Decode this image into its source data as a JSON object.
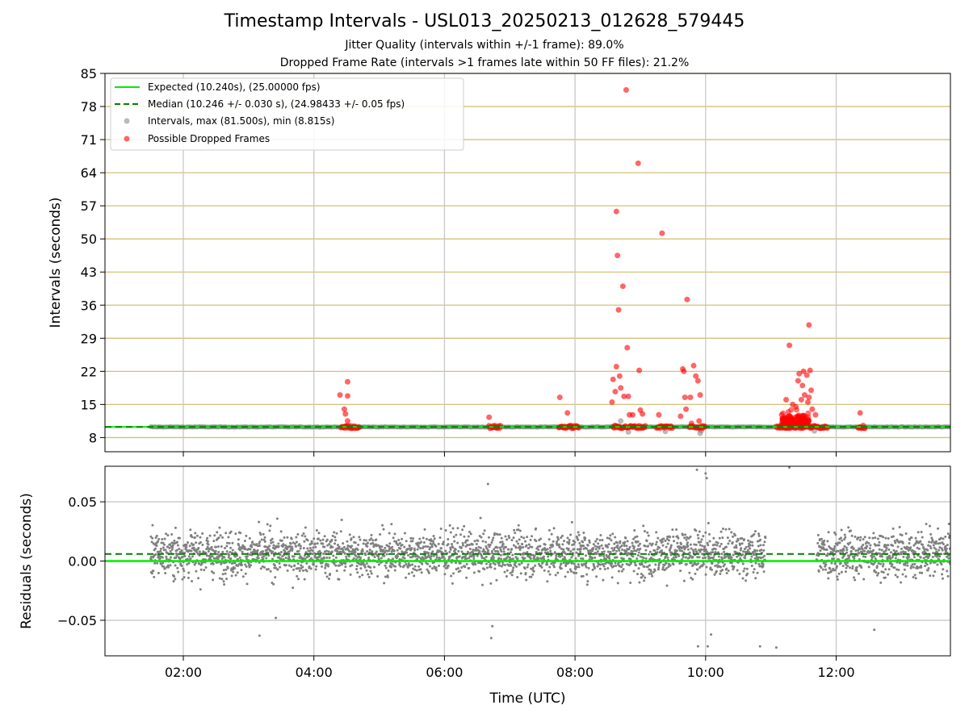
{
  "figure": {
    "title": "Timestamp Intervals - USL013_20250213_012628_579445",
    "subtitle_1": "Jitter Quality (intervals within +/-1 frame): 89.0%",
    "subtitle_2": "Dropped Frame Rate (intervals >1 frames late within 50 FF files): 21.2%"
  },
  "colors": {
    "expected": "#00ee00",
    "median": "#008000",
    "intervals": "#808080",
    "dropped": "#ff0000",
    "hgrid": "#d4c07a",
    "vgrid": "#c8c8c8"
  },
  "chart_data": [
    {
      "type": "scatter",
      "panel": "top",
      "xlabel": "",
      "ylabel": "Intervals (seconds)",
      "xlim": [
        "00:48",
        "13:45"
      ],
      "ylim": [
        5,
        85
      ],
      "y_ticks": [
        8,
        15,
        22,
        29,
        36,
        43,
        50,
        57,
        64,
        71,
        78,
        85
      ],
      "x_ticks": [
        "02:00",
        "04:00",
        "06:00",
        "08:00",
        "10:00",
        "12:00"
      ],
      "grid": true,
      "legend_position": "top-left",
      "legend": [
        "Expected (10.240s), (25.00000 fps)",
        "Median (10.246 +/- 0.030 s), (24.98433 +/- 0.05 fps)",
        "Intervals, max (81.500s), min (8.815s)",
        "Possible Dropped Frames"
      ],
      "series": [
        {
          "name": "Expected (10.240s), (25.00000 fps)",
          "kind": "hline",
          "y": 10.24
        },
        {
          "name": "Median (10.246 +/- 0.030 s), (24.98433 +/- 0.05 fps)",
          "kind": "hline",
          "y": 10.246
        },
        {
          "name": "Intervals, max (81.500s), min (8.815s)",
          "kind": "band",
          "x_range": [
            "01:30",
            "13:45"
          ],
          "y": 10.24
        },
        {
          "name": "Possible Dropped Frames",
          "kind": "scatter",
          "clusters": [
            {
              "x_range": [
                "04:25",
                "04:42"
              ],
              "y": 10.24
            },
            {
              "x_range": [
                "06:41",
                "06:52"
              ],
              "y": 10.24
            },
            {
              "x_range": [
                "07:45",
                "08:04"
              ],
              "y": 10.24
            },
            {
              "x_range": [
                "08:35",
                "09:05"
              ],
              "y": 10.24
            },
            {
              "x_range": [
                "09:15",
                "09:30"
              ],
              "y": 10.24
            },
            {
              "x_range": [
                "09:45",
                "10:00"
              ],
              "y": 10.24
            },
            {
              "x_range": [
                "11:05",
                "11:35"
              ],
              "y": 10.24
            },
            {
              "x_range": [
                "11:36",
                "11:52"
              ],
              "y": 10.24
            },
            {
              "x_range": [
                "12:20",
                "12:27"
              ],
              "y": 10.24
            }
          ],
          "points": [
            {
              "x": "04:24",
              "y": 17.0
            },
            {
              "x": "04:28",
              "y": 14.0
            },
            {
              "x": "04:29",
              "y": 13.0
            },
            {
              "x": "04:31",
              "y": 11.5
            },
            {
              "x": "04:31",
              "y": 19.8
            },
            {
              "x": "04:31",
              "y": 16.8
            },
            {
              "x": "06:41",
              "y": 12.3
            },
            {
              "x": "07:46",
              "y": 16.5
            },
            {
              "x": "07:53",
              "y": 13.2
            },
            {
              "x": "08:34",
              "y": 15.5
            },
            {
              "x": "08:35",
              "y": 20.3
            },
            {
              "x": "08:37",
              "y": 17.7
            },
            {
              "x": "08:38",
              "y": 23.0
            },
            {
              "x": "08:38",
              "y": 55.8
            },
            {
              "x": "08:39",
              "y": 46.5
            },
            {
              "x": "08:40",
              "y": 35.0
            },
            {
              "x": "08:41",
              "y": 21.0
            },
            {
              "x": "08:42",
              "y": 18.5
            },
            {
              "x": "08:44",
              "y": 40.0
            },
            {
              "x": "08:45",
              "y": 16.7
            },
            {
              "x": "08:47",
              "y": 81.5
            },
            {
              "x": "08:48",
              "y": 27.0
            },
            {
              "x": "08:49",
              "y": 16.7
            },
            {
              "x": "08:50",
              "y": 12.8
            },
            {
              "x": "08:53",
              "y": 12.8
            },
            {
              "x": "08:58",
              "y": 66.0
            },
            {
              "x": "08:59",
              "y": 22.2
            },
            {
              "x": "09:00",
              "y": 13.8
            },
            {
              "x": "09:02",
              "y": 13.0
            },
            {
              "x": "09:17",
              "y": 12.8
            },
            {
              "x": "09:20",
              "y": 51.2
            },
            {
              "x": "09:37",
              "y": 12.5
            },
            {
              "x": "09:39",
              "y": 22.5
            },
            {
              "x": "09:40",
              "y": 22.0
            },
            {
              "x": "09:41",
              "y": 16.5
            },
            {
              "x": "09:42",
              "y": 14.0
            },
            {
              "x": "09:43",
              "y": 37.2
            },
            {
              "x": "09:46",
              "y": 16.5
            },
            {
              "x": "09:47",
              "y": 11.0
            },
            {
              "x": "09:49",
              "y": 23.2
            },
            {
              "x": "09:51",
              "y": 21.0
            },
            {
              "x": "09:53",
              "y": 20.0
            },
            {
              "x": "09:54",
              "y": 11.5
            },
            {
              "x": "09:55",
              "y": 17.0
            },
            {
              "x": "11:10",
              "y": 12.8
            },
            {
              "x": "11:14",
              "y": 16.0
            },
            {
              "x": "11:17",
              "y": 27.5
            },
            {
              "x": "11:20",
              "y": 15.0
            },
            {
              "x": "11:23",
              "y": 14.5
            },
            {
              "x": "11:25",
              "y": 20.0
            },
            {
              "x": "11:26",
              "y": 21.5
            },
            {
              "x": "11:28",
              "y": 16.0
            },
            {
              "x": "11:29",
              "y": 19.0
            },
            {
              "x": "11:30",
              "y": 22.0
            },
            {
              "x": "11:31",
              "y": 17.0
            },
            {
              "x": "11:33",
              "y": 21.2
            },
            {
              "x": "11:34",
              "y": 15.5
            },
            {
              "x": "11:35",
              "y": 16.5
            },
            {
              "x": "11:35",
              "y": 31.8
            },
            {
              "x": "11:36",
              "y": 22.2
            },
            {
              "x": "11:37",
              "y": 18.0
            },
            {
              "x": "11:38",
              "y": 14.0
            },
            {
              "x": "11:41",
              "y": 12.8
            },
            {
              "x": "12:22",
              "y": 13.2
            }
          ]
        }
      ]
    },
    {
      "type": "scatter",
      "panel": "bottom",
      "xlabel": "Time (UTC)",
      "ylabel": "Residuals (seconds)",
      "xlim": [
        "00:48",
        "13:45"
      ],
      "ylim": [
        -0.08,
        0.08
      ],
      "y_ticks": [
        -0.05,
        0.0,
        0.05
      ],
      "y_tick_labels": [
        "−0.05",
        "0.00",
        "0.05"
      ],
      "x_ticks": [
        "02:00",
        "04:00",
        "06:00",
        "08:00",
        "10:00",
        "12:00"
      ],
      "grid": true,
      "series": [
        {
          "kind": "hline",
          "y": 0.0
        },
        {
          "kind": "hline",
          "y": 0.006
        },
        {
          "kind": "residual_cloud",
          "x_ranges": [
            [
              "01:30",
              "10:55"
            ],
            [
              "11:42",
              "13:45"
            ]
          ],
          "y_range": [
            -0.02,
            0.03
          ],
          "outliers": [
            {
              "x": "03:10",
              "y": -0.063
            },
            {
              "x": "03:25",
              "y": -0.048
            },
            {
              "x": "06:40",
              "y": 0.065
            },
            {
              "x": "06:43",
              "y": -0.065
            },
            {
              "x": "06:44",
              "y": -0.055
            },
            {
              "x": "09:52",
              "y": 0.077
            },
            {
              "x": "09:53",
              "y": -0.072
            },
            {
              "x": "10:00",
              "y": 0.074
            },
            {
              "x": "10:01",
              "y": 0.07
            },
            {
              "x": "10:02",
              "y": -0.072
            },
            {
              "x": "10:05",
              "y": -0.062
            },
            {
              "x": "10:50",
              "y": -0.072
            },
            {
              "x": "11:05",
              "y": -0.073
            },
            {
              "x": "11:17",
              "y": 0.079
            },
            {
              "x": "12:35",
              "y": -0.058
            }
          ]
        }
      ]
    }
  ]
}
